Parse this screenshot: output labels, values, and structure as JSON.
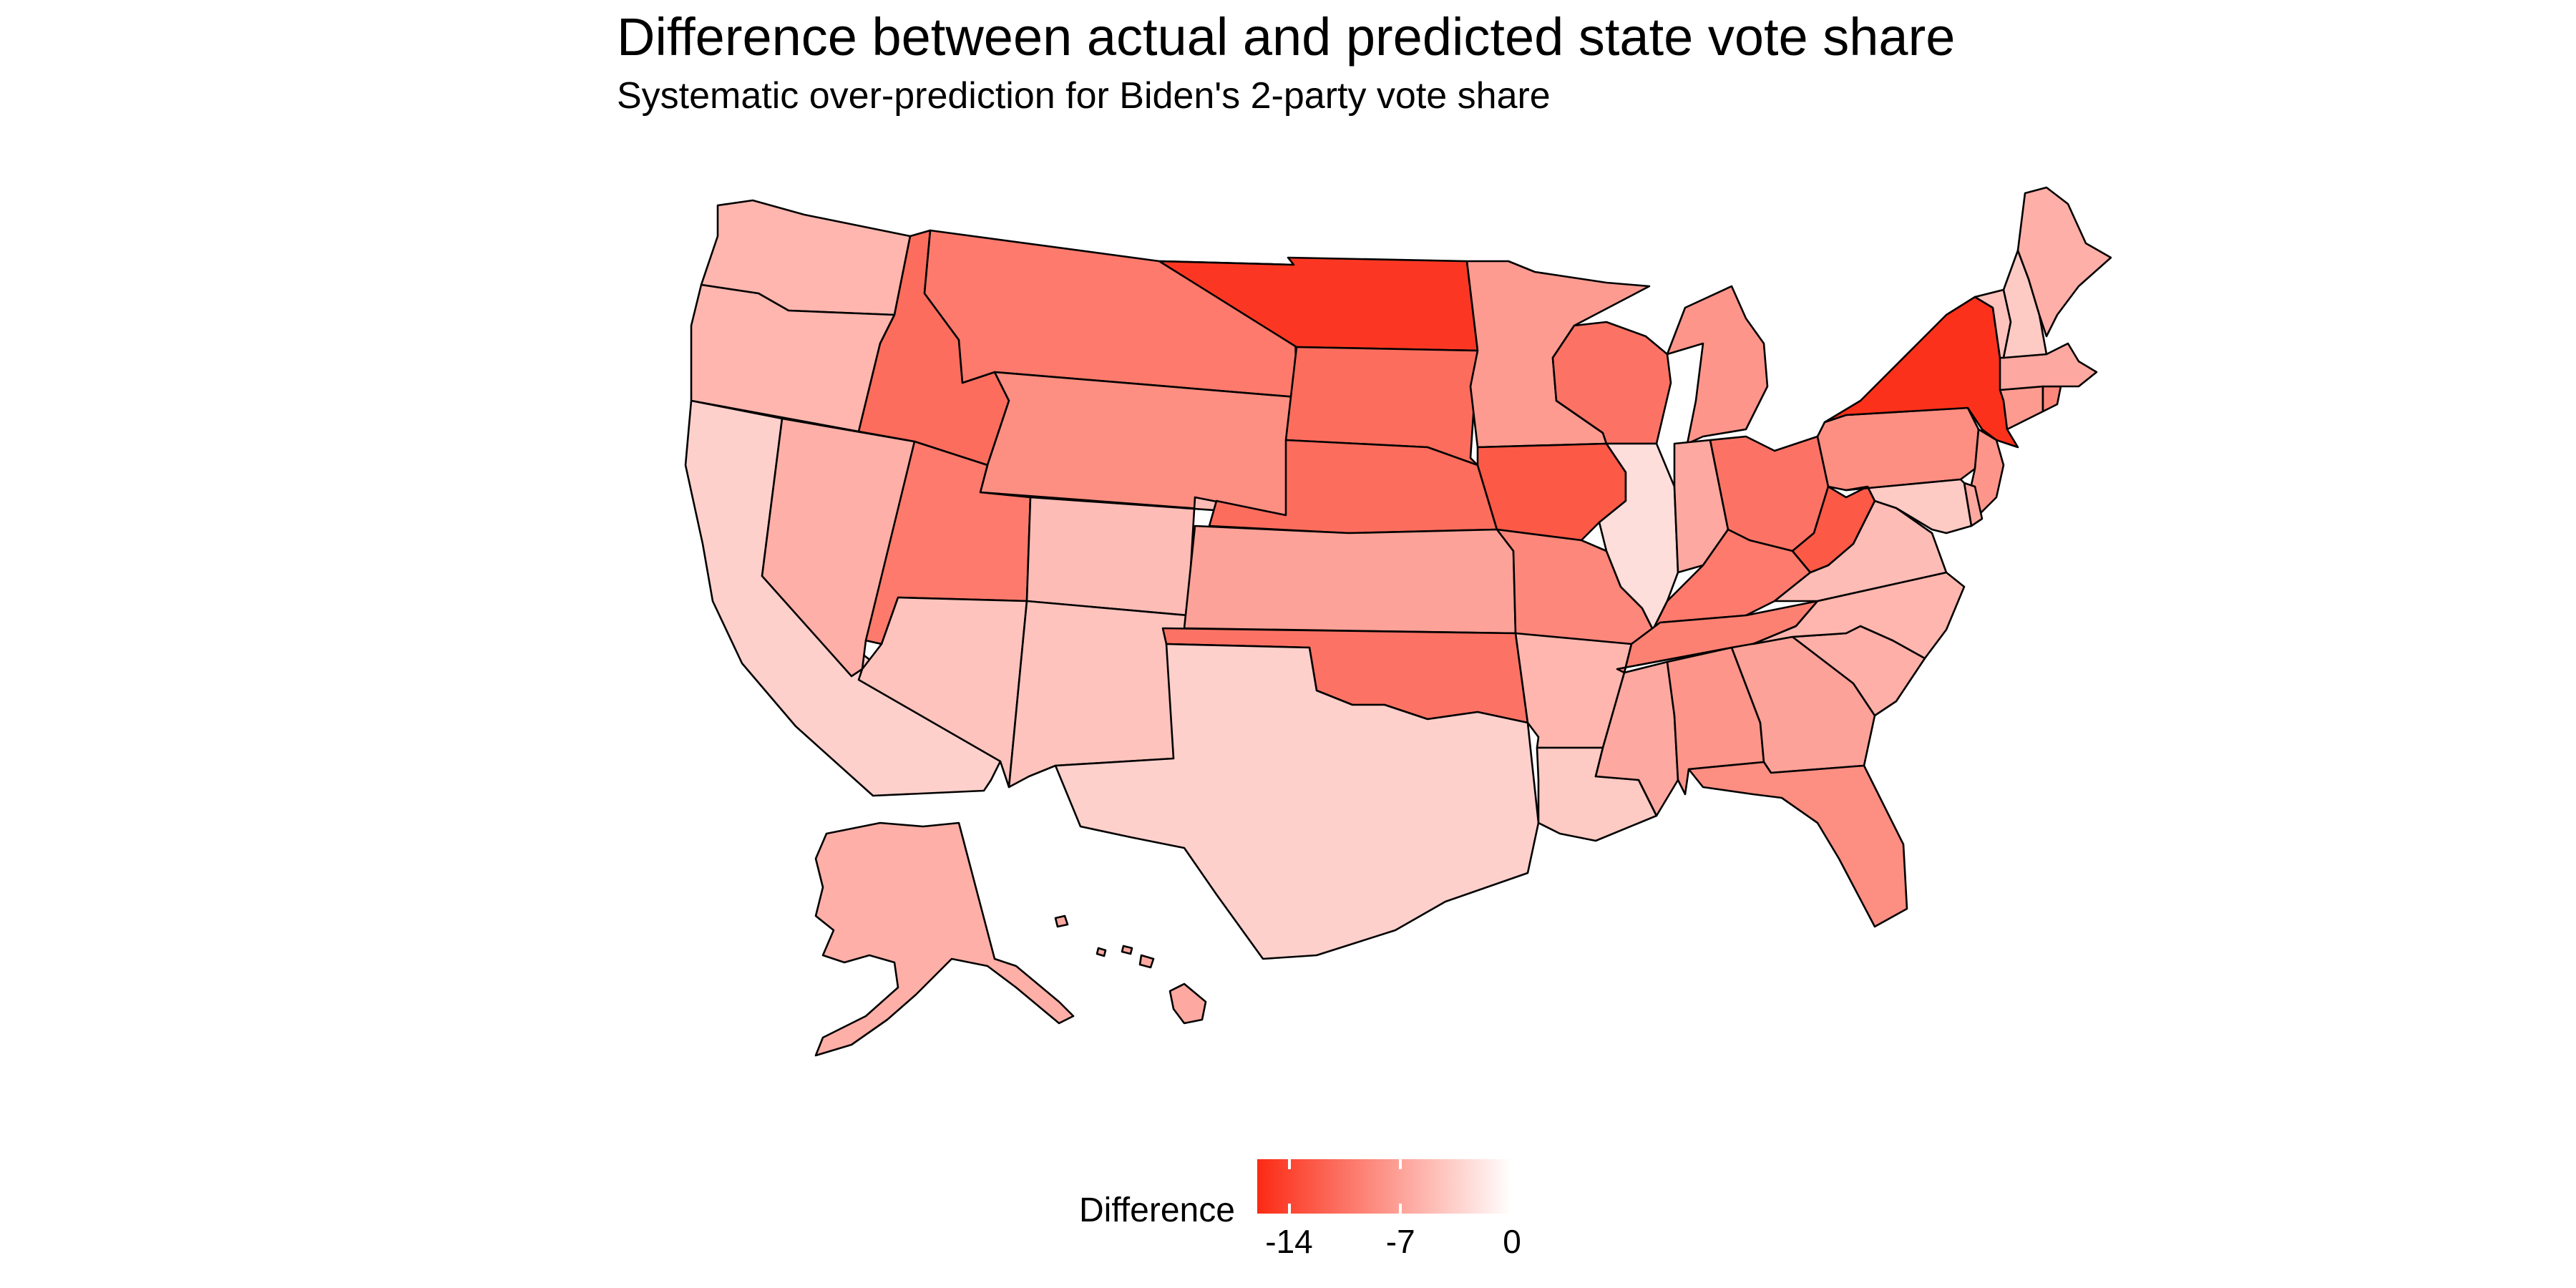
{
  "title": "Difference between actual and predicted state vote share",
  "subtitle": "Systematic over-prediction for Biden's 2-party vote share",
  "legend": {
    "title": "Difference",
    "min": -16,
    "max": 0,
    "low_color": "#fb2a14",
    "high_color": "#ffffff",
    "ticks": [
      {
        "value": -14,
        "label": "-14"
      },
      {
        "value": -7,
        "label": "-7"
      },
      {
        "value": 0,
        "label": "0"
      }
    ]
  },
  "states": [
    {
      "abbr": "WA",
      "value": -5.5
    },
    {
      "abbr": "OR",
      "value": -5.5
    },
    {
      "abbr": "CA",
      "value": -3.5
    },
    {
      "abbr": "NV",
      "value": -6.0
    },
    {
      "abbr": "ID",
      "value": -11.0
    },
    {
      "abbr": "MT",
      "value": -10.0
    },
    {
      "abbr": "WY",
      "value": -8.5
    },
    {
      "abbr": "UT",
      "value": -10.0
    },
    {
      "abbr": "AZ",
      "value": -4.5
    },
    {
      "abbr": "CO",
      "value": -5.0
    },
    {
      "abbr": "NM",
      "value": -4.5
    },
    {
      "abbr": "ND",
      "value": -15.0
    },
    {
      "abbr": "SD",
      "value": -11.0
    },
    {
      "abbr": "NE",
      "value": -11.0
    },
    {
      "abbr": "KS",
      "value": -7.0
    },
    {
      "abbr": "OK",
      "value": -10.5
    },
    {
      "abbr": "TX",
      "value": -3.5
    },
    {
      "abbr": "MN",
      "value": -7.5
    },
    {
      "abbr": "IA",
      "value": -12.5
    },
    {
      "abbr": "MO",
      "value": -9.0
    },
    {
      "abbr": "AR",
      "value": -5.5
    },
    {
      "abbr": "LA",
      "value": -4.0
    },
    {
      "abbr": "WI",
      "value": -10.5
    },
    {
      "abbr": "IL",
      "value": -2.5
    },
    {
      "abbr": "MI",
      "value": -8.0
    },
    {
      "abbr": "IN",
      "value": -6.5
    },
    {
      "abbr": "OH",
      "value": -10.5
    },
    {
      "abbr": "KY",
      "value": -10.0
    },
    {
      "abbr": "TN",
      "value": -9.5
    },
    {
      "abbr": "MS",
      "value": -6.5
    },
    {
      "abbr": "AL",
      "value": -8.0
    },
    {
      "abbr": "GA",
      "value": -7.0
    },
    {
      "abbr": "FL",
      "value": -8.5
    },
    {
      "abbr": "SC",
      "value": -6.0
    },
    {
      "abbr": "NC",
      "value": -5.5
    },
    {
      "abbr": "VA",
      "value": -5.0
    },
    {
      "abbr": "WV",
      "value": -12.5
    },
    {
      "abbr": "PA",
      "value": -8.5
    },
    {
      "abbr": "NY",
      "value": -15.5
    },
    {
      "abbr": "NJ",
      "value": -8.0
    },
    {
      "abbr": "DE",
      "value": -6.5
    },
    {
      "abbr": "MD",
      "value": -4.0
    },
    {
      "abbr": "CT",
      "value": -7.5
    },
    {
      "abbr": "RI",
      "value": -9.0
    },
    {
      "abbr": "MA",
      "value": -6.5
    },
    {
      "abbr": "VT",
      "value": -4.5
    },
    {
      "abbr": "NH",
      "value": -4.0
    },
    {
      "abbr": "ME",
      "value": -6.0
    },
    {
      "abbr": "AK",
      "value": -6.0
    },
    {
      "abbr": "HI",
      "value": -6.5
    }
  ]
}
